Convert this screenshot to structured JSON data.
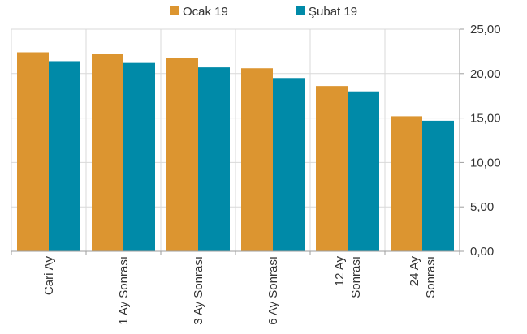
{
  "chart_data": {
    "type": "bar",
    "title": "",
    "xlabel": "",
    "ylabel": "",
    "categories": [
      [
        "Cari Ay"
      ],
      [
        "1 Ay Sonrası"
      ],
      [
        "3 Ay Sonrası"
      ],
      [
        "6 Ay Sonrası"
      ],
      [
        "12 Ay",
        "Sonrası"
      ],
      [
        "24 Ay",
        "Sonrası"
      ]
    ],
    "series": [
      {
        "name": "Ocak 19",
        "color": "#DC9530",
        "values": [
          22.4,
          22.2,
          21.8,
          20.6,
          18.6,
          15.2
        ]
      },
      {
        "name": "Şubat 19",
        "color": "#008AA8",
        "values": [
          21.4,
          21.2,
          20.7,
          19.5,
          18.0,
          14.7
        ]
      }
    ],
    "ylim": [
      0,
      25
    ],
    "yticks": [
      "0,00",
      "5,00",
      "10,00",
      "15,00",
      "20,00",
      "25,00"
    ],
    "yaxis_position": "right",
    "grid": true,
    "legend_position": "top"
  }
}
